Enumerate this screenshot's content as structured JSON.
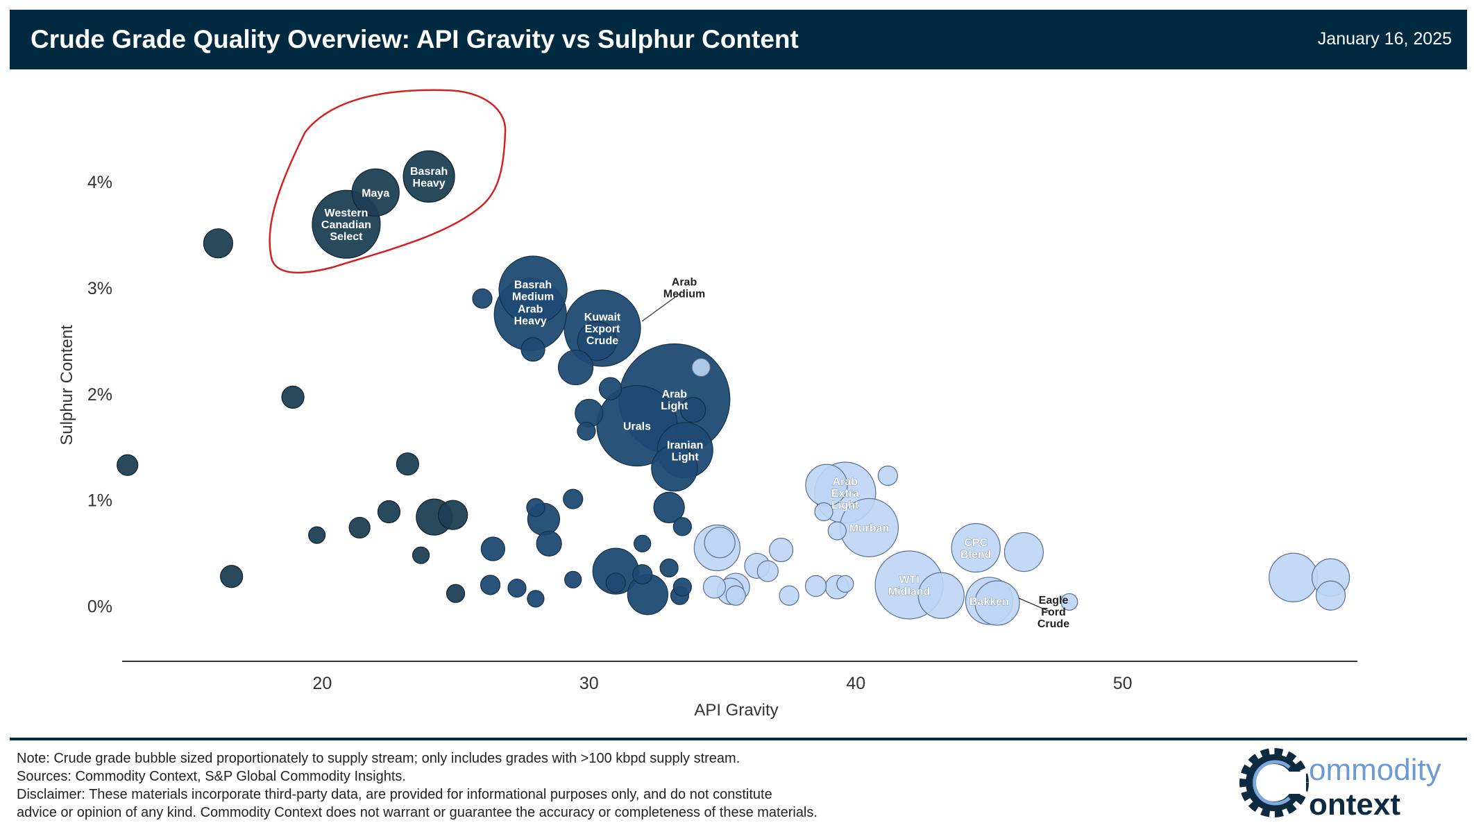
{
  "header": {
    "title": "Crude Grade Quality Overview: API Gravity vs Sulphur Content",
    "date": "January 16, 2025"
  },
  "footer": {
    "note": "Note: Crude grade bubble sized proportionately to supply stream; only includes grades with >100 kbpd supply stream.",
    "sources": "Sources: Commodity Context, S&P Global Commodity Insights.",
    "disclaimer": "Disclaimer: These materials incorporate third-party data, are provided for informational purposes only, and do not constitute\nadvice or opinion of any kind. Commodity Context does not warrant or guarantee the accuracy or completeness of these materials."
  },
  "logo": {
    "text_top": "ommodity",
    "text_bottom": "ontext",
    "icon": "gear-c-icon"
  },
  "colors": {
    "heavy": "#1e3f54",
    "medium": "#1f4a73",
    "light": "#bdd5f5",
    "header": "#002a40",
    "highlight": "#d42020"
  },
  "chart_data": {
    "type": "scatter",
    "xlabel": "API Gravity",
    "ylabel": "Sulphur Content",
    "xlim": [
      12.5,
      58.8
    ],
    "ylim": [
      -0.5,
      4.7
    ],
    "xticks": [
      20,
      30,
      40,
      50
    ],
    "yticks": [
      0,
      1,
      2,
      3,
      4
    ],
    "ytick_labels": [
      "0%",
      "1%",
      "2%",
      "3%",
      "4%"
    ],
    "grid": false,
    "annotation": {
      "type": "hand-drawn circle",
      "color": "red",
      "around": [
        "Western Canadian Select",
        "Maya",
        "Basrah Heavy"
      ]
    },
    "points": [
      {
        "x": 24.0,
        "y": 4.05,
        "size": 37,
        "label": "Basrah Heavy",
        "group": "heavy"
      },
      {
        "x": 22.0,
        "y": 3.9,
        "size": 34,
        "label": "Maya",
        "group": "heavy"
      },
      {
        "x": 20.9,
        "y": 3.6,
        "size": 49,
        "label": "Western Canadian Select",
        "group": "heavy"
      },
      {
        "x": 16.1,
        "y": 3.42,
        "size": 21,
        "label": "",
        "group": "heavy"
      },
      {
        "x": 18.9,
        "y": 1.97,
        "size": 16,
        "label": "",
        "group": "heavy"
      },
      {
        "x": 12.7,
        "y": 1.33,
        "size": 15,
        "label": "",
        "group": "heavy"
      },
      {
        "x": 16.6,
        "y": 0.28,
        "size": 16,
        "label": "",
        "group": "heavy"
      },
      {
        "x": 19.8,
        "y": 0.67,
        "size": 12,
        "label": "",
        "group": "heavy"
      },
      {
        "x": 21.4,
        "y": 0.74,
        "size": 15,
        "label": "",
        "group": "heavy"
      },
      {
        "x": 22.5,
        "y": 0.89,
        "size": 16,
        "label": "",
        "group": "heavy"
      },
      {
        "x": 23.2,
        "y": 1.34,
        "size": 16,
        "label": "",
        "group": "heavy"
      },
      {
        "x": 23.7,
        "y": 0.48,
        "size": 12,
        "label": "",
        "group": "heavy"
      },
      {
        "x": 24.2,
        "y": 0.84,
        "size": 26,
        "label": "",
        "group": "heavy"
      },
      {
        "x": 24.9,
        "y": 0.86,
        "size": 21,
        "label": "",
        "group": "heavy"
      },
      {
        "x": 25.0,
        "y": 0.12,
        "size": 13,
        "label": "",
        "group": "heavy"
      },
      {
        "x": 27.9,
        "y": 2.98,
        "size": 49,
        "label": "Basrah Medium",
        "group": "medium"
      },
      {
        "x": 27.8,
        "y": 2.75,
        "size": 52,
        "label": "Arab Heavy",
        "group": "medium"
      },
      {
        "x": 30.5,
        "y": 2.62,
        "size": 55,
        "label": "Kuwait Export Crude",
        "group": "medium"
      },
      {
        "x": 33.2,
        "y": 1.95,
        "size": 80,
        "label": "Arab Light",
        "group": "medium"
      },
      {
        "x": 31.8,
        "y": 1.7,
        "size": 58,
        "label": "Urals",
        "group": "medium"
      },
      {
        "x": 33.6,
        "y": 1.47,
        "size": 40,
        "label": "Iranian Light",
        "group": "medium"
      },
      {
        "x": 33.2,
        "y": 1.3,
        "size": 33,
        "label": "",
        "group": "medium"
      },
      {
        "x": 33.9,
        "y": 1.85,
        "size": 18,
        "label": "",
        "group": "medium"
      },
      {
        "x": 30.3,
        "y": 2.5,
        "size": 28,
        "label": "Arab Medium",
        "group": "medium"
      },
      {
        "x": 26.0,
        "y": 2.9,
        "size": 14,
        "label": "",
        "group": "medium"
      },
      {
        "x": 27.9,
        "y": 2.42,
        "size": 17,
        "label": "",
        "group": "medium"
      },
      {
        "x": 29.5,
        "y": 2.25,
        "size": 25,
        "label": "",
        "group": "medium"
      },
      {
        "x": 30.8,
        "y": 2.05,
        "size": 16,
        "label": "",
        "group": "medium"
      },
      {
        "x": 30.0,
        "y": 1.82,
        "size": 20,
        "label": "",
        "group": "medium"
      },
      {
        "x": 29.9,
        "y": 1.65,
        "size": 13,
        "label": "",
        "group": "medium"
      },
      {
        "x": 33.0,
        "y": 0.93,
        "size": 22,
        "label": "",
        "group": "medium"
      },
      {
        "x": 33.5,
        "y": 0.75,
        "size": 13,
        "label": "",
        "group": "medium"
      },
      {
        "x": 29.4,
        "y": 1.01,
        "size": 14,
        "label": "",
        "group": "medium"
      },
      {
        "x": 28.0,
        "y": 0.93,
        "size": 13,
        "label": "",
        "group": "medium"
      },
      {
        "x": 28.3,
        "y": 0.82,
        "size": 23,
        "label": "",
        "group": "medium"
      },
      {
        "x": 28.5,
        "y": 0.59,
        "size": 18,
        "label": "",
        "group": "medium"
      },
      {
        "x": 26.4,
        "y": 0.54,
        "size": 17,
        "label": "",
        "group": "medium"
      },
      {
        "x": 26.3,
        "y": 0.2,
        "size": 14,
        "label": "",
        "group": "medium"
      },
      {
        "x": 27.3,
        "y": 0.17,
        "size": 13,
        "label": "",
        "group": "medium"
      },
      {
        "x": 28.0,
        "y": 0.07,
        "size": 12,
        "label": "",
        "group": "medium"
      },
      {
        "x": 29.4,
        "y": 0.25,
        "size": 12,
        "label": "",
        "group": "medium"
      },
      {
        "x": 31.0,
        "y": 0.33,
        "size": 33,
        "label": "",
        "group": "medium"
      },
      {
        "x": 31.0,
        "y": 0.22,
        "size": 14,
        "label": "",
        "group": "medium"
      },
      {
        "x": 32.0,
        "y": 0.59,
        "size": 12,
        "label": "",
        "group": "medium"
      },
      {
        "x": 32.0,
        "y": 0.3,
        "size": 14,
        "label": "",
        "group": "medium"
      },
      {
        "x": 32.2,
        "y": 0.11,
        "size": 29,
        "label": "",
        "group": "medium"
      },
      {
        "x": 33.0,
        "y": 0.36,
        "size": 13,
        "label": "",
        "group": "medium"
      },
      {
        "x": 33.4,
        "y": 0.1,
        "size": 13,
        "label": "",
        "group": "medium"
      },
      {
        "x": 33.5,
        "y": 0.18,
        "size": 13,
        "label": "",
        "group": "medium"
      },
      {
        "x": 34.2,
        "y": 2.25,
        "size": 13,
        "label": "",
        "group": "light"
      },
      {
        "x": 39.6,
        "y": 1.07,
        "size": 44,
        "label": "Arab Extra Light",
        "group": "light"
      },
      {
        "x": 38.9,
        "y": 1.14,
        "size": 30,
        "label": "",
        "group": "light"
      },
      {
        "x": 41.2,
        "y": 1.23,
        "size": 14,
        "label": "",
        "group": "light"
      },
      {
        "x": 38.8,
        "y": 0.89,
        "size": 13,
        "label": "",
        "group": "light"
      },
      {
        "x": 39.3,
        "y": 0.71,
        "size": 13,
        "label": "",
        "group": "light"
      },
      {
        "x": 40.5,
        "y": 0.74,
        "size": 42,
        "label": "Murban",
        "group": "light"
      },
      {
        "x": 34.8,
        "y": 0.55,
        "size": 33,
        "label": "",
        "group": "light"
      },
      {
        "x": 34.9,
        "y": 0.6,
        "size": 22,
        "label": "",
        "group": "light"
      },
      {
        "x": 34.7,
        "y": 0.18,
        "size": 16,
        "label": "",
        "group": "light"
      },
      {
        "x": 35.3,
        "y": 0.14,
        "size": 19,
        "label": "",
        "group": "light"
      },
      {
        "x": 35.5,
        "y": 0.1,
        "size": 14,
        "label": "",
        "group": "light"
      },
      {
        "x": 35.5,
        "y": 0.18,
        "size": 20,
        "label": "",
        "group": "light"
      },
      {
        "x": 36.3,
        "y": 0.38,
        "size": 18,
        "label": "",
        "group": "light"
      },
      {
        "x": 36.7,
        "y": 0.33,
        "size": 15,
        "label": "",
        "group": "light"
      },
      {
        "x": 37.2,
        "y": 0.53,
        "size": 17,
        "label": "",
        "group": "light"
      },
      {
        "x": 37.5,
        "y": 0.1,
        "size": 14,
        "label": "",
        "group": "light"
      },
      {
        "x": 38.5,
        "y": 0.19,
        "size": 15,
        "label": "",
        "group": "light"
      },
      {
        "x": 39.3,
        "y": 0.18,
        "size": 17,
        "label": "",
        "group": "light"
      },
      {
        "x": 39.6,
        "y": 0.21,
        "size": 12,
        "label": "",
        "group": "light"
      },
      {
        "x": 42.0,
        "y": 0.2,
        "size": 49,
        "label": "WTI Midland",
        "group": "light"
      },
      {
        "x": 43.2,
        "y": 0.1,
        "size": 33,
        "label": "",
        "group": "light"
      },
      {
        "x": 44.5,
        "y": 0.55,
        "size": 35,
        "label": "CPC Blend",
        "group": "light"
      },
      {
        "x": 45.0,
        "y": 0.05,
        "size": 34,
        "label": "Bakken",
        "group": "light"
      },
      {
        "x": 45.3,
        "y": 0.03,
        "size": 32,
        "label": "",
        "group": "light"
      },
      {
        "x": 46.3,
        "y": 0.51,
        "size": 28,
        "label": "",
        "group": "light"
      },
      {
        "x": 48.0,
        "y": 0.04,
        "size": 12,
        "label": "Eagle Ford Crude",
        "group": "light"
      },
      {
        "x": 56.4,
        "y": 0.27,
        "size": 35,
        "label": "",
        "group": "light"
      },
      {
        "x": 57.8,
        "y": 0.27,
        "size": 27,
        "label": "",
        "group": "light"
      },
      {
        "x": 57.8,
        "y": 0.1,
        "size": 21,
        "label": "",
        "group": "light"
      }
    ]
  }
}
